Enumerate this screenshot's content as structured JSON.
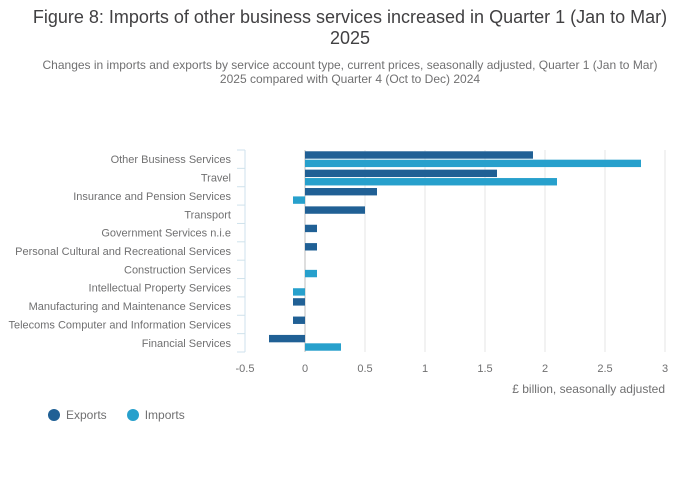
{
  "title": "Figure 8: Imports of other business services increased in Quarter 1 (Jan to Mar) 2025",
  "subtitle": "Changes in imports and exports by service account type, current prices, seasonally adjusted, Quarter 1 (Jan to Mar) 2025 compared with Quarter 4 (Oct to Dec) 2024",
  "colors": {
    "exports": "#206095",
    "imports": "#27a0cc",
    "grid": "#e6e6e6",
    "text": "#707071"
  },
  "chart_data": {
    "type": "bar",
    "orientation": "horizontal",
    "title": "Figure 8: Imports of other business services increased in Quarter 1 (Jan to Mar) 2025",
    "subtitle": "Changes in imports and exports by service account type, current prices, seasonally adjusted, Quarter 1 (Jan to Mar) 2025 compared with Quarter 4 (Oct to Dec) 2024",
    "xlabel": "£ billion, seasonally adjusted",
    "ylabel": "",
    "categories": [
      "Other Business Services",
      "Travel",
      "Insurance and Pension Services",
      "Transport",
      "Government Services n.i.e",
      "Personal Cultural and Recreational Services",
      "Construction Services",
      "Intellectual Property Services",
      "Manufacturing and Maintenance Services",
      "Telecoms Computer and Information Services",
      "Financial Services"
    ],
    "series": [
      {
        "name": "Exports",
        "values": [
          1.9,
          1.6,
          0.6,
          0.5,
          0.1,
          0.1,
          0,
          0,
          -0.1,
          -0.1,
          -0.3
        ]
      },
      {
        "name": "Imports",
        "values": [
          2.8,
          2.1,
          -0.1,
          0,
          0,
          0,
          0.1,
          -0.1,
          0,
          0,
          0.3
        ]
      }
    ],
    "xlim": [
      -0.5,
      3.0
    ],
    "xticks": [
      -0.5,
      0,
      0.5,
      1,
      1.5,
      2,
      2.5,
      3
    ],
    "xtick_labels": [
      "-0.5",
      "0",
      "0.5",
      "1",
      "1.5",
      "2",
      "2.5",
      "3"
    ],
    "grid": true,
    "legend": {
      "position": "bottom-left",
      "entries": [
        "Exports",
        "Imports"
      ]
    }
  }
}
